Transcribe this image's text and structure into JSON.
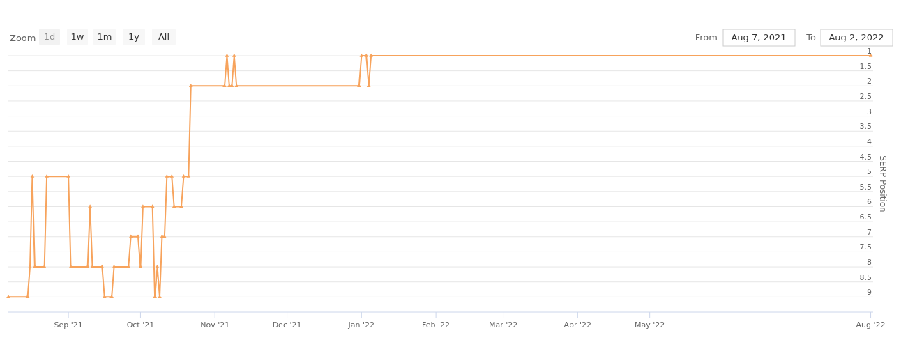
{
  "chart_data": {
    "type": "line",
    "ylabel": "SERP Position",
    "annotations": [
      "Zoom",
      "1d",
      "1w",
      "1m",
      "1y",
      "All",
      "From",
      "Aug 7, 2021",
      "To",
      "Aug 2, 2022"
    ],
    "x": [
      "2021-08-07",
      "2021-08-15",
      "2021-08-16",
      "2021-08-17",
      "2021-08-18",
      "2021-08-22",
      "2021-08-23",
      "2021-09-01",
      "2021-09-02",
      "2021-09-09",
      "2021-09-10",
      "2021-09-11",
      "2021-09-15",
      "2021-09-16",
      "2021-09-19",
      "2021-09-20",
      "2021-09-26",
      "2021-09-27",
      "2021-09-30",
      "2021-10-01",
      "2021-10-02",
      "2021-10-06",
      "2021-10-07",
      "2021-10-08",
      "2021-10-09",
      "2021-10-10",
      "2021-10-11",
      "2021-10-12",
      "2021-10-14",
      "2021-10-15",
      "2021-10-18",
      "2021-10-19",
      "2021-10-21",
      "2021-10-22",
      "2021-11-05",
      "2021-11-06",
      "2021-11-07",
      "2021-11-08",
      "2021-11-09",
      "2021-11-10",
      "2021-12-31",
      "2022-01-01",
      "2022-01-03",
      "2022-01-04",
      "2022-01-05",
      "2022-08-01"
    ],
    "series": [
      {
        "color": "#f7a35c",
        "values": [
          9,
          9,
          8,
          5,
          8,
          8,
          5,
          5,
          8,
          8,
          6,
          8,
          8,
          9,
          9,
          8,
          8,
          7,
          7,
          8,
          6,
          6,
          9,
          8,
          9,
          7,
          7,
          5,
          5,
          6,
          6,
          5,
          5,
          2,
          2,
          1,
          2,
          2,
          1,
          2,
          2,
          1,
          1,
          2,
          1,
          1
        ]
      }
    ],
    "xlim": [
      "2021-08-07",
      "2022-08-02"
    ],
    "xticks": [
      {
        "value": "2021-09-01",
        "label": "Sep '21"
      },
      {
        "value": "2021-10-01",
        "label": "Oct '21"
      },
      {
        "value": "2021-11-01",
        "label": "Nov '21"
      },
      {
        "value": "2021-12-01",
        "label": "Dec '21"
      },
      {
        "value": "2022-01-01",
        "label": "Jan '22"
      },
      {
        "value": "2022-02-01",
        "label": "Feb '22"
      },
      {
        "value": "2022-03-01",
        "label": "Mar '22"
      },
      {
        "value": "2022-04-01",
        "label": "Apr '22"
      },
      {
        "value": "2022-05-01",
        "label": "May '22"
      },
      {
        "value": "2022-08-01",
        "label": "Aug '22"
      }
    ],
    "ylim": [
      9.5,
      1
    ],
    "yticks": [
      1,
      1.5,
      2,
      2.5,
      3,
      3.5,
      4,
      4.5,
      5,
      5.5,
      6,
      6.5,
      7,
      7.5,
      8,
      8.5,
      9
    ],
    "grid": "y",
    "marker": "triangle",
    "line_style": "solid"
  }
}
